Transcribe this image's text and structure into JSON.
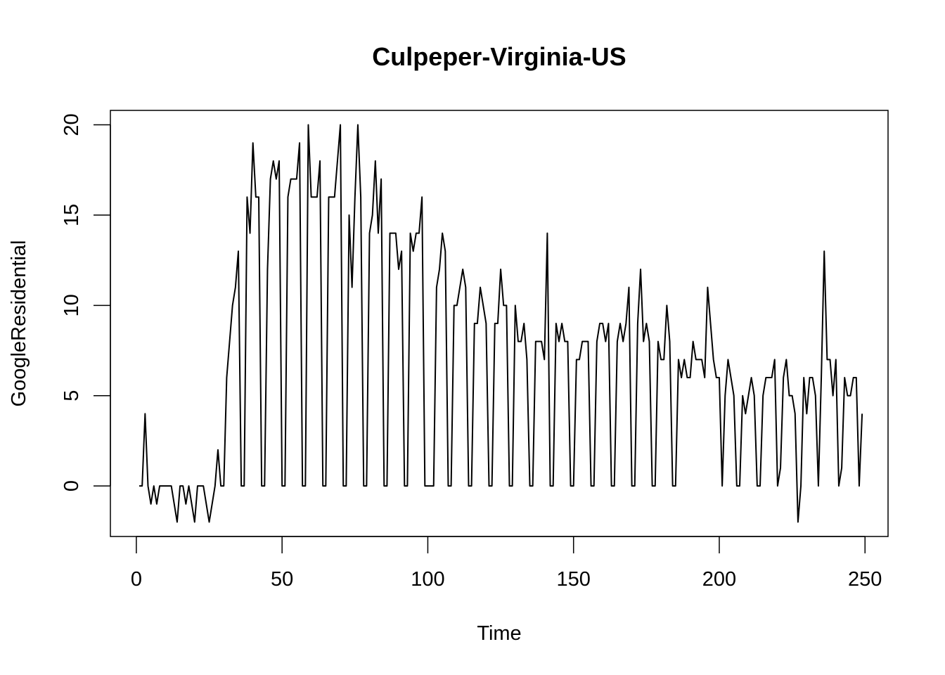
{
  "chart_data": {
    "type": "line",
    "title": "Culpeper-Virginia-US",
    "xlabel": "Time",
    "ylabel": "GoogleResidential",
    "xlim": [
      -8.9,
      257.9
    ],
    "ylim": [
      -2.8,
      20.8
    ],
    "xticks": [
      0,
      50,
      100,
      150,
      200,
      250
    ],
    "yticks": [
      0,
      5,
      10,
      15,
      20
    ],
    "grid": false,
    "legend": "none",
    "x_start": 1,
    "values": [
      0,
      0,
      4,
      0,
      -1,
      0,
      -1,
      0,
      0,
      0,
      0,
      0,
      -1,
      -2,
      0,
      0,
      -1,
      0,
      -1,
      -2,
      0,
      0,
      0,
      -1,
      -2,
      -1,
      0,
      2,
      0,
      0,
      6,
      8,
      10,
      11,
      13,
      0,
      0,
      16,
      14,
      19,
      16,
      16,
      0,
      0,
      12,
      17,
      18,
      17,
      18,
      0,
      0,
      16,
      17,
      17,
      17,
      19,
      0,
      0,
      20,
      16,
      16,
      16,
      18,
      0,
      0,
      16,
      16,
      16,
      18,
      20,
      0,
      0,
      15,
      11,
      16,
      20,
      16,
      0,
      0,
      14,
      15,
      18,
      14,
      17,
      0,
      0,
      14,
      14,
      14,
      12,
      13,
      0,
      0,
      14,
      13,
      14,
      14,
      16,
      0,
      0,
      0,
      0,
      11,
      12,
      14,
      13,
      0,
      0,
      10,
      10,
      11,
      12,
      11,
      0,
      0,
      9,
      9,
      11,
      10,
      9,
      0,
      0,
      9,
      9,
      12,
      10,
      10,
      0,
      0,
      10,
      8,
      8,
      9,
      7,
      0,
      0,
      8,
      8,
      8,
      7,
      14,
      0,
      0,
      9,
      8,
      9,
      8,
      8,
      0,
      0,
      7,
      7,
      8,
      8,
      8,
      0,
      0,
      8,
      9,
      9,
      8,
      9,
      0,
      0,
      8,
      9,
      8,
      9,
      11,
      0,
      0,
      9,
      12,
      8,
      9,
      8,
      0,
      0,
      8,
      7,
      7,
      10,
      8,
      0,
      0,
      7,
      6,
      7,
      6,
      6,
      8,
      7,
      7,
      7,
      6,
      11,
      9,
      7,
      6,
      6,
      0,
      5,
      7,
      6,
      5,
      0,
      0,
      5,
      4,
      5,
      6,
      5,
      0,
      0,
      5,
      6,
      6,
      6,
      7,
      0,
      1,
      6,
      7,
      5,
      5,
      4,
      -2,
      0,
      6,
      4,
      6,
      6,
      5,
      0,
      6,
      13,
      7,
      7,
      5,
      7,
      0,
      1,
      6,
      5,
      5,
      6,
      6,
      0,
      4
    ]
  }
}
